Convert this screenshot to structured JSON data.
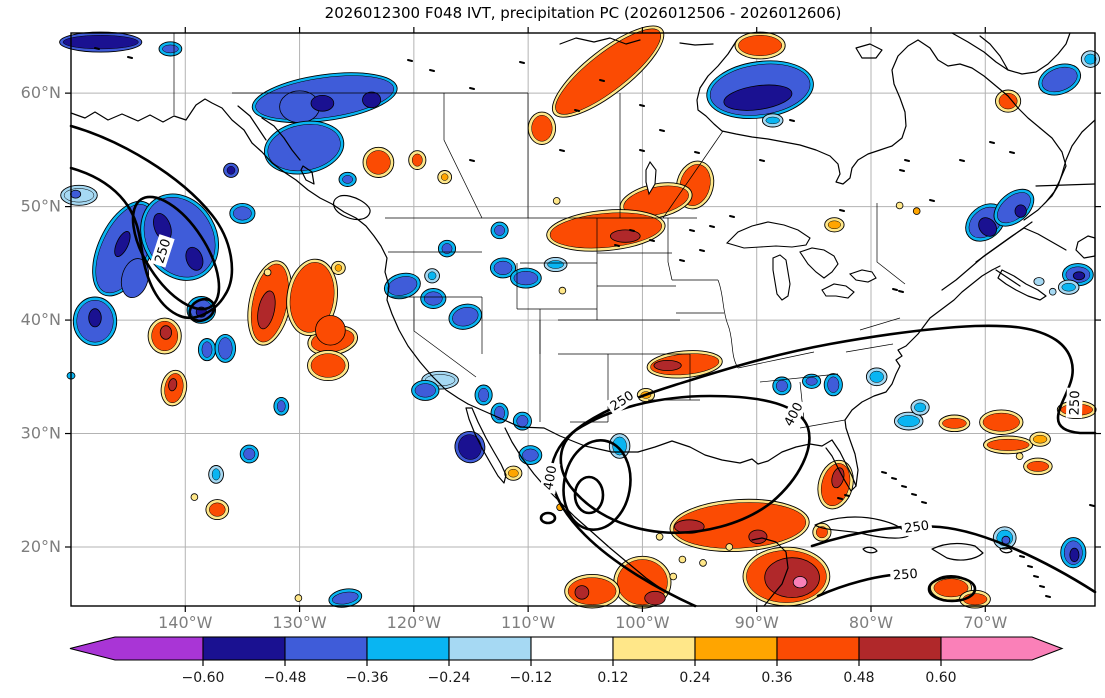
{
  "title": "2026012300 F048 IVT, precipitation PC (2026012506 - 2026012606)",
  "chart_data": {
    "type": "contour_map",
    "title": "2026012300 F048 IVT, precipitation PC (2026012506 - 2026012606)",
    "extent": {
      "lon_min": -150.0,
      "lon_max": -60.4,
      "lat_min": 14.8,
      "lat_max": 65.3
    },
    "grid": true,
    "x_axis": {
      "tick_labels": [
        "140°W",
        "130°W",
        "120°W",
        "110°W",
        "100°W",
        "90°W",
        "80°W",
        "70°W"
      ],
      "tick_lons": [
        -140,
        -130,
        -120,
        -110,
        -100,
        -90,
        -80,
        -70
      ]
    },
    "y_axis": {
      "tick_labels": [
        "20°N",
        "30°N",
        "40°N",
        "50°N",
        "60°N"
      ],
      "tick_lats": [
        20,
        30,
        40,
        50,
        60
      ]
    },
    "ivt_contours": {
      "levels": [
        250,
        400
      ],
      "labels": [
        {
          "text": "250",
          "lon": -142.0,
          "lat": 46.1,
          "rot": -72
        },
        {
          "text": "250",
          "lon": -101.8,
          "lat": 32.9,
          "rot": -33
        },
        {
          "text": "400",
          "lon": -108.1,
          "lat": 26.1,
          "rot": -80
        },
        {
          "text": "400",
          "lon": -86.8,
          "lat": 31.7,
          "rot": -62
        },
        {
          "text": "250",
          "lon": -76.0,
          "lat": 21.8,
          "rot": -8
        },
        {
          "text": "250",
          "lon": -77.0,
          "lat": 17.6,
          "rot": -4
        },
        {
          "text": "250",
          "lon": -62.2,
          "lat": 32.7,
          "rot": -88
        }
      ]
    },
    "colorbar": {
      "extend": "both",
      "boundaries": [
        -0.6,
        -0.48,
        -0.36,
        -0.24,
        -0.12,
        0.12,
        0.24,
        0.36,
        0.48,
        0.6
      ],
      "tick_labels": [
        "−0.60",
        "−0.48",
        "−0.36",
        "−0.24",
        "−0.12",
        "0.12",
        "0.24",
        "0.36",
        "0.48",
        "0.60"
      ],
      "colors": [
        "#a935d6",
        "#1a1191",
        "#3f5cd9",
        "#09b5f2",
        "#a6d9f3",
        "#ffffff",
        "#ffe789",
        "#ffa500",
        "#fb4b03",
        "#b0282a",
        "#fa80b8"
      ]
    },
    "shaded_anomalies": {
      "note": "precipitation PC shading; cells = [lon, lat, rx_deg, ry_deg, rot_deg, color_index, fringe_flag]",
      "cells": [
        [
          -147.4,
          64.5,
          3.3,
          0.6,
          0,
          1,
          1
        ],
        [
          -141.3,
          63.9,
          0.7,
          0.35,
          0,
          2,
          1
        ],
        [
          -127.8,
          59.6,
          6.1,
          1.75,
          -8,
          2,
          1
        ],
        [
          -130.0,
          58.8,
          1.75,
          1.4,
          0,
          2,
          0
        ],
        [
          -128.0,
          59.1,
          1.0,
          0.7,
          0,
          1,
          0
        ],
        [
          -123.7,
          59.4,
          0.8,
          0.7,
          0,
          1,
          0
        ],
        [
          -129.6,
          55.2,
          3.2,
          2.0,
          -10,
          2,
          1
        ],
        [
          -125.8,
          52.4,
          0.45,
          0.35,
          0,
          2,
          1
        ],
        [
          -145.3,
          46.3,
          2.0,
          4.2,
          25,
          2,
          1
        ],
        [
          -144.4,
          43.7,
          1.15,
          1.75,
          15,
          2,
          0
        ],
        [
          -145.5,
          46.7,
          0.5,
          1.2,
          25,
          1,
          0
        ],
        [
          -140.5,
          47.3,
          2.9,
          3.7,
          -30,
          2,
          1
        ],
        [
          -142.0,
          48.2,
          0.7,
          1.25,
          -20,
          1,
          0
        ],
        [
          -139.2,
          45.4,
          0.7,
          1.05,
          -20,
          1,
          0
        ],
        [
          -135.0,
          49.4,
          0.8,
          0.6,
          0,
          2,
          1
        ],
        [
          -147.9,
          39.9,
          1.6,
          1.85,
          0,
          2,
          1
        ],
        [
          -147.9,
          40.2,
          0.55,
          0.8,
          0,
          1,
          0
        ],
        [
          -138.6,
          40.9,
          0.95,
          0.9,
          0,
          2,
          1
        ],
        [
          -138.6,
          40.7,
          0.45,
          0.45,
          0,
          1,
          0
        ],
        [
          -136.0,
          53.2,
          0.35,
          0.35,
          0,
          1,
          1
        ],
        [
          -89.7,
          60.3,
          4.4,
          2.2,
          -8,
          2,
          1
        ],
        [
          -89.9,
          59.6,
          3.0,
          1.05,
          -8,
          1,
          0
        ],
        [
          -88.6,
          57.6,
          0.6,
          0.3,
          0,
          3,
          1
        ],
        [
          -70.0,
          48.6,
          1.6,
          1.15,
          -40,
          2,
          1
        ],
        [
          -69.8,
          48.2,
          0.7,
          0.9,
          -40,
          1,
          0
        ],
        [
          -67.5,
          49.9,
          1.7,
          1.0,
          -40,
          2,
          1
        ],
        [
          -66.9,
          49.6,
          0.5,
          0.55,
          0,
          1,
          0
        ],
        [
          -112.5,
          47.9,
          0.45,
          0.45,
          0,
          2,
          1
        ],
        [
          -117.1,
          46.3,
          0.45,
          0.45,
          0,
          2,
          1
        ],
        [
          -121.0,
          43.0,
          1.3,
          0.8,
          -15,
          2,
          1
        ],
        [
          -118.3,
          41.9,
          0.8,
          0.6,
          0,
          2,
          1
        ],
        [
          -115.5,
          40.3,
          1.15,
          0.8,
          -15,
          2,
          1
        ],
        [
          -112.2,
          44.6,
          0.8,
          0.6,
          0,
          2,
          1
        ],
        [
          -110.2,
          43.7,
          1.05,
          0.6,
          0,
          2,
          1
        ],
        [
          -118.4,
          43.9,
          0.35,
          0.35,
          0,
          3,
          1
        ],
        [
          -117.7,
          34.7,
          1.3,
          0.5,
          0,
          4,
          1
        ],
        [
          -119.0,
          33.8,
          0.9,
          0.6,
          0,
          2,
          1
        ],
        [
          -113.9,
          33.4,
          0.45,
          0.6,
          0,
          2,
          1
        ],
        [
          -112.5,
          31.8,
          0.45,
          0.6,
          0,
          2,
          1
        ],
        [
          -110.5,
          31.1,
          0.5,
          0.5,
          0,
          2,
          1
        ],
        [
          -115.1,
          28.8,
          1.0,
          1.1,
          -15,
          1,
          1
        ],
        [
          -109.8,
          28.1,
          0.7,
          0.55,
          0,
          2,
          1
        ],
        [
          -138.1,
          37.4,
          0.45,
          0.7,
          0,
          2,
          1
        ],
        [
          -136.5,
          37.5,
          0.6,
          0.95,
          0,
          2,
          1
        ],
        [
          -131.6,
          32.4,
          0.35,
          0.5,
          0,
          2,
          1
        ],
        [
          -134.4,
          28.2,
          0.5,
          0.5,
          0,
          2,
          1
        ],
        [
          -137.3,
          26.4,
          0.35,
          0.5,
          0,
          3,
          1
        ],
        [
          -126.0,
          15.5,
          1.15,
          0.5,
          -10,
          2,
          1
        ],
        [
          -87.8,
          34.2,
          0.5,
          0.5,
          0,
          2,
          1
        ],
        [
          -85.2,
          34.6,
          0.5,
          0.35,
          0,
          2,
          1
        ],
        [
          -83.3,
          34.3,
          0.5,
          0.7,
          0,
          2,
          1
        ],
        [
          -79.5,
          35.0,
          0.6,
          0.5,
          0,
          3,
          1
        ],
        [
          -76.7,
          31.1,
          0.95,
          0.5,
          0,
          3,
          1
        ],
        [
          -75.7,
          32.3,
          0.5,
          0.4,
          0,
          3,
          1
        ],
        [
          -102.0,
          28.9,
          0.6,
          0.8,
          0,
          3,
          1
        ],
        [
          -107.6,
          44.9,
          0.7,
          0.35,
          0,
          3,
          1
        ],
        [
          -68.3,
          20.8,
          0.7,
          0.7,
          0,
          3,
          1
        ],
        [
          -68.2,
          20.6,
          0.35,
          0.35,
          0,
          2,
          0
        ],
        [
          -62.3,
          19.5,
          0.8,
          1.05,
          0,
          2,
          1
        ],
        [
          -62.2,
          19.3,
          0.4,
          0.6,
          0,
          1,
          0
        ],
        [
          -63.5,
          61.2,
          1.6,
          1.0,
          -20,
          2,
          1
        ],
        [
          -60.8,
          63.0,
          0.5,
          0.45,
          0,
          3,
          1
        ],
        [
          -61.9,
          44.0,
          1.05,
          0.7,
          0,
          2,
          1
        ],
        [
          -61.8,
          43.9,
          0.5,
          0.35,
          0,
          1,
          0
        ],
        [
          -62.7,
          42.9,
          0.6,
          0.35,
          0,
          3,
          1
        ],
        [
          -65.3,
          43.4,
          0.45,
          0.35,
          0,
          4,
          0
        ],
        [
          -64.1,
          42.5,
          0.3,
          0.3,
          0,
          4,
          0
        ],
        [
          -149.3,
          51.0,
          1.3,
          0.6,
          0,
          4,
          1
        ],
        [
          -149.6,
          51.1,
          0.45,
          0.35,
          0,
          2,
          0
        ],
        [
          -150.0,
          35.1,
          0.35,
          0.3,
          0,
          3,
          0
        ],
        [
          -103.0,
          61.9,
          5.7,
          1.65,
          -38,
          8,
          1
        ],
        [
          -89.7,
          64.2,
          1.9,
          0.9,
          0,
          8,
          1
        ],
        [
          -68.0,
          59.3,
          0.8,
          0.7,
          0,
          8,
          1
        ],
        [
          -95.4,
          51.9,
          1.3,
          1.85,
          15,
          8,
          1
        ],
        [
          -98.8,
          50.5,
          2.9,
          1.2,
          -12,
          8,
          1
        ],
        [
          -103.2,
          47.9,
          4.9,
          1.5,
          -5,
          8,
          1
        ],
        [
          -101.5,
          47.4,
          1.3,
          0.55,
          0,
          9,
          0
        ],
        [
          -108.8,
          56.9,
          0.9,
          1.15,
          0,
          8,
          1
        ],
        [
          -123.1,
          53.9,
          1.05,
          1.05,
          0,
          8,
          1
        ],
        [
          -119.7,
          54.1,
          0.45,
          0.55,
          0,
          8,
          1
        ],
        [
          -117.3,
          52.6,
          0.3,
          0.3,
          0,
          7,
          1
        ],
        [
          -141.8,
          38.6,
          1.15,
          1.3,
          0,
          8,
          1
        ],
        [
          -141.7,
          38.9,
          0.5,
          0.6,
          0,
          9,
          0
        ],
        [
          -141.0,
          34.0,
          0.8,
          1.3,
          10,
          8,
          1
        ],
        [
          -141.1,
          34.3,
          0.35,
          0.55,
          10,
          9,
          0
        ],
        [
          -127.1,
          38.2,
          1.9,
          1.0,
          -10,
          8,
          1
        ],
        [
          -127.5,
          36.0,
          1.5,
          1.05,
          0,
          8,
          1
        ],
        [
          -132.6,
          41.5,
          1.5,
          3.5,
          12,
          8,
          1
        ],
        [
          -132.9,
          40.9,
          0.7,
          1.7,
          12,
          9,
          0
        ],
        [
          -128.9,
          42.0,
          1.9,
          3.1,
          8,
          8,
          1
        ],
        [
          -127.3,
          39.1,
          1.3,
          1.3,
          0,
          8,
          0
        ],
        [
          -126.6,
          44.6,
          0.3,
          0.3,
          0,
          7,
          1
        ],
        [
          -137.2,
          23.3,
          0.7,
          0.6,
          0,
          8,
          1
        ],
        [
          -139.2,
          24.4,
          0.3,
          0.3,
          0,
          6,
          0
        ],
        [
          -130.1,
          15.5,
          0.3,
          0.3,
          0,
          6,
          0
        ],
        [
          -132.8,
          44.2,
          0.3,
          0.3,
          0,
          6,
          0
        ],
        [
          -96.3,
          36.1,
          3.0,
          0.9,
          -5,
          8,
          1
        ],
        [
          -97.8,
          36.0,
          1.2,
          0.45,
          0,
          9,
          0
        ],
        [
          -99.7,
          33.4,
          0.45,
          0.3,
          0,
          7,
          1
        ],
        [
          -83.2,
          48.4,
          0.55,
          0.35,
          0,
          7,
          1
        ],
        [
          -77.5,
          50.1,
          0.3,
          0.3,
          0,
          6,
          0
        ],
        [
          -76.0,
          49.6,
          0.3,
          0.3,
          0,
          7,
          0
        ],
        [
          -107.0,
          42.6,
          0.3,
          0.3,
          0,
          6,
          0
        ],
        [
          -107.5,
          50.5,
          0.3,
          0.3,
          0,
          6,
          0
        ],
        [
          -91.5,
          21.9,
          5.8,
          2.0,
          -3,
          8,
          1
        ],
        [
          -95.9,
          21.8,
          1.3,
          0.6,
          0,
          9,
          0
        ],
        [
          -89.9,
          20.9,
          0.8,
          0.6,
          0,
          9,
          0
        ],
        [
          -83.1,
          25.5,
          1.2,
          1.9,
          15,
          8,
          1
        ],
        [
          -82.9,
          26.1,
          0.5,
          0.9,
          15,
          9,
          0
        ],
        [
          -84.3,
          21.3,
          0.5,
          0.5,
          0,
          8,
          1
        ],
        [
          -87.4,
          17.4,
          3.5,
          2.3,
          0,
          8,
          1
        ],
        [
          -86.9,
          17.3,
          2.4,
          1.75,
          0,
          9,
          0
        ],
        [
          -86.2,
          16.9,
          0.6,
          0.5,
          0,
          10,
          0
        ],
        [
          -100.0,
          16.9,
          2.2,
          2.0,
          0,
          8,
          1
        ],
        [
          -98.9,
          15.5,
          0.9,
          0.6,
          0,
          9,
          0
        ],
        [
          -104.4,
          16.1,
          2.1,
          1.2,
          0,
          8,
          1
        ],
        [
          -105.3,
          16.0,
          0.6,
          0.6,
          0,
          9,
          0
        ],
        [
          -73.0,
          16.4,
          1.5,
          0.8,
          0,
          8,
          1
        ],
        [
          -70.9,
          15.4,
          1.05,
          0.5,
          0,
          8,
          1
        ],
        [
          -98.5,
          20.9,
          0.3,
          0.3,
          0,
          6,
          0
        ],
        [
          -96.5,
          18.9,
          0.3,
          0.3,
          0,
          6,
          0
        ],
        [
          -94.7,
          18.6,
          0.3,
          0.3,
          0,
          6,
          0
        ],
        [
          -92.4,
          20.0,
          0.3,
          0.3,
          0,
          6,
          0
        ],
        [
          -97.3,
          17.4,
          0.3,
          0.3,
          0,
          6,
          0
        ],
        [
          -107.2,
          23.5,
          0.3,
          0.3,
          0,
          7,
          0
        ],
        [
          -68.6,
          31.0,
          1.6,
          0.8,
          0,
          8,
          1
        ],
        [
          -72.7,
          30.9,
          1.05,
          0.45,
          0,
          8,
          1
        ],
        [
          -62.0,
          32.1,
          1.4,
          0.5,
          0,
          8,
          1
        ],
        [
          -68.0,
          29.0,
          1.85,
          0.5,
          0,
          8,
          1
        ],
        [
          -65.2,
          29.5,
          0.6,
          0.35,
          0,
          7,
          1
        ],
        [
          -65.4,
          27.1,
          0.95,
          0.45,
          0,
          8,
          1
        ],
        [
          -67.0,
          28.0,
          0.3,
          0.3,
          0,
          6,
          0
        ],
        [
          -111.3,
          26.5,
          0.45,
          0.35,
          0,
          7,
          1
        ]
      ]
    }
  }
}
